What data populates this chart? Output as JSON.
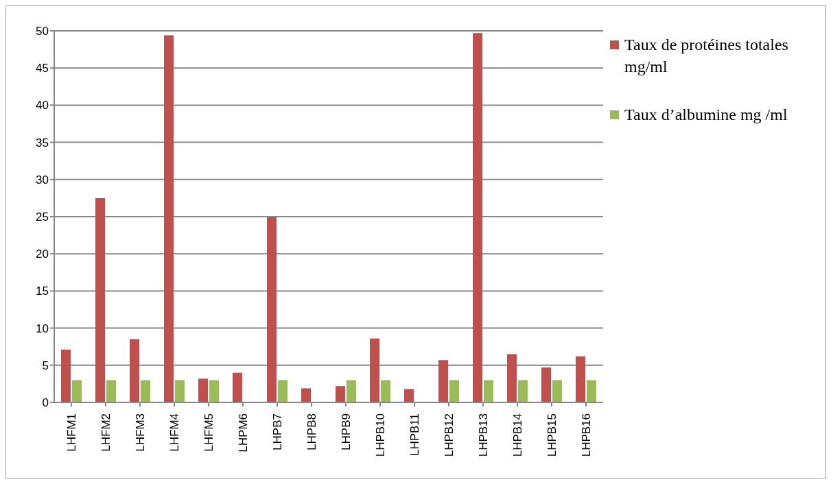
{
  "chart_data": {
    "type": "bar",
    "categories": [
      "LHFM1",
      "LHFM2",
      "LHFM3",
      "LHFM4",
      "LHFM5",
      "LHPM6",
      "LHPB7",
      "LHPB8",
      "LHPB9",
      "LHPB10",
      "LHPB11",
      "LHPB12",
      "LHPB13",
      "LHPB14",
      "LHPB15",
      "LHPB16"
    ],
    "series": [
      {
        "name": "Taux de protéines totales mg/ml",
        "color": "#c0504d",
        "values": [
          7.1,
          27.5,
          8.5,
          49.4,
          3.2,
          4.0,
          24.9,
          1.9,
          2.2,
          8.6,
          1.8,
          5.7,
          49.7,
          6.5,
          4.7,
          6.2
        ]
      },
      {
        "name": "Taux d’albumine mg /ml",
        "color": "#9bbb59",
        "values": [
          3,
          3,
          3,
          3,
          3,
          0,
          3,
          0,
          3,
          3,
          0,
          3,
          3,
          3,
          3,
          3
        ]
      }
    ],
    "ylim": [
      0,
      50
    ],
    "yticks": [
      0,
      5,
      10,
      15,
      20,
      25,
      30,
      35,
      40,
      45,
      50
    ],
    "grid": "y",
    "legend": "top right"
  }
}
